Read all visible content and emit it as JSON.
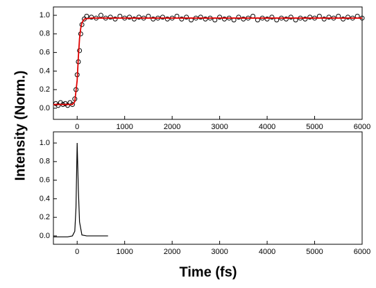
{
  "y_label": "Intensity (Norm.)",
  "x_label": "Time (fs)",
  "chart_data": [
    {
      "type": "scatter",
      "color": "#000000",
      "x": [
        -450,
        -400,
        -350,
        -300,
        -250,
        -200,
        -150,
        -100,
        -50,
        -25,
        0,
        25,
        50,
        75,
        100,
        150,
        200,
        300,
        400,
        500,
        600,
        700,
        800,
        900,
        1000,
        1100,
        1200,
        1300,
        1400,
        1500,
        1600,
        1700,
        1800,
        1900,
        2000,
        2100,
        2200,
        2300,
        2400,
        2500,
        2600,
        2700,
        2800,
        2900,
        3000,
        3100,
        3200,
        3300,
        3400,
        3500,
        3600,
        3700,
        3800,
        3900,
        4000,
        4100,
        4200,
        4300,
        4400,
        4500,
        4600,
        4700,
        4800,
        4900,
        5000,
        5100,
        5200,
        5300,
        5400,
        5500,
        5600,
        5700,
        5800,
        5900,
        6000
      ],
      "values": [
        0.05,
        0.03,
        0.06,
        0.04,
        0.05,
        0.03,
        0.06,
        0.04,
        0.1,
        0.2,
        0.36,
        0.5,
        0.62,
        0.8,
        0.9,
        0.96,
        0.99,
        0.98,
        0.97,
        1.0,
        0.97,
        0.98,
        0.96,
        0.99,
        0.97,
        0.98,
        0.96,
        0.98,
        0.97,
        0.99,
        0.96,
        0.97,
        0.98,
        0.96,
        0.97,
        0.99,
        0.96,
        0.98,
        0.95,
        0.97,
        0.98,
        0.96,
        0.97,
        0.95,
        0.98,
        0.96,
        0.97,
        0.95,
        0.98,
        0.96,
        0.97,
        0.99,
        0.95,
        0.97,
        0.96,
        0.98,
        0.95,
        0.97,
        0.96,
        0.98,
        0.95,
        0.97,
        0.96,
        0.98,
        0.97,
        0.99,
        0.96,
        0.98,
        0.97,
        0.99,
        0.96,
        0.98,
        0.97,
        0.99,
        0.97
      ],
      "fit": {
        "color": "#e00000",
        "x": [
          -500,
          -100,
          -50,
          0,
          25,
          50,
          75,
          100,
          150,
          300,
          6000
        ],
        "values": [
          0.04,
          0.04,
          0.07,
          0.3,
          0.55,
          0.75,
          0.86,
          0.92,
          0.96,
          0.97,
          0.97
        ]
      },
      "xlim": [
        -500,
        6000
      ],
      "ylim": [
        -0.12,
        1.09
      ],
      "xticks": [
        0,
        1000,
        2000,
        3000,
        4000,
        5000,
        6000
      ],
      "yticks": [
        {
          "value": 0,
          "label": "0.0"
        },
        0.2,
        0.4,
        0.6,
        0.8,
        {
          "value": 1,
          "label": "1.0"
        }
      ]
    },
    {
      "type": "line",
      "color": "#000000",
      "x": [
        -500,
        -300,
        -200,
        -100,
        -50,
        -25,
        0,
        25,
        50,
        100,
        200,
        650
      ],
      "values": [
        -0.01,
        -0.01,
        -0.01,
        0.0,
        0.05,
        0.3,
        1.0,
        0.5,
        0.15,
        0.01,
        0.0,
        0.0
      ],
      "xlim": [
        -500,
        6000
      ],
      "ylim": [
        -0.09,
        1.12
      ],
      "xticks": [
        0,
        1000,
        2000,
        3000,
        4000,
        5000,
        6000
      ],
      "yticks": [
        {
          "value": 0,
          "label": "0.0"
        },
        0.2,
        0.4,
        0.6,
        0.8,
        {
          "value": 1,
          "label": "1.0"
        }
      ]
    }
  ]
}
